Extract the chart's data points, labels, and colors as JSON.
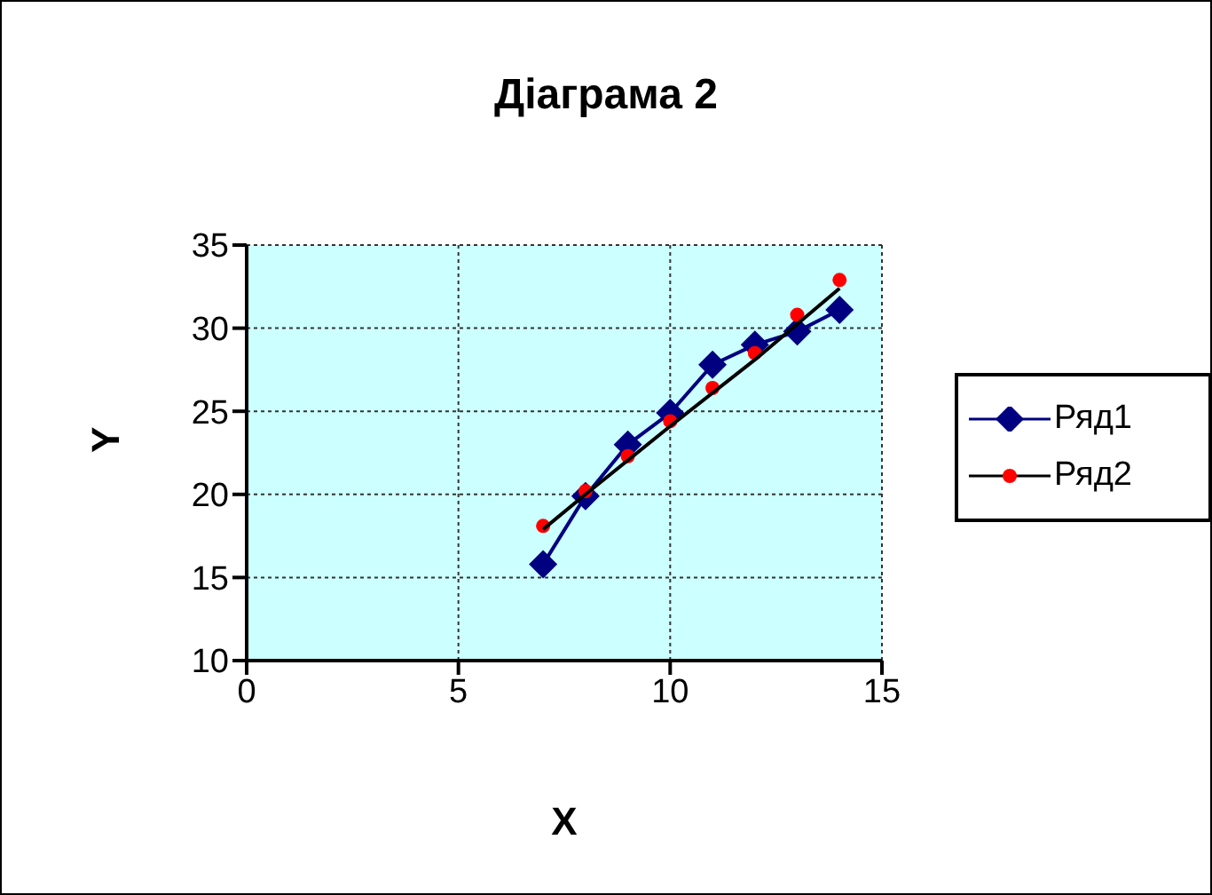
{
  "chart_data": {
    "type": "line",
    "title": "Діаграма 2",
    "xlabel": "X",
    "ylabel": "Y",
    "xlim": [
      0,
      15
    ],
    "xticks": [
      0,
      5,
      10,
      15
    ],
    "ylim": [
      10,
      35
    ],
    "yticks": [
      10,
      15,
      20,
      25,
      30,
      35
    ],
    "grid": true,
    "legend": "right",
    "series": [
      {
        "name": "Ряд1",
        "color": "#000080",
        "marker": "diamond",
        "x": [
          7,
          8,
          9,
          10,
          11,
          12,
          13,
          14
        ],
        "values": [
          15.8,
          19.9,
          23.0,
          24.9,
          27.8,
          29.0,
          29.8,
          31.1
        ]
      },
      {
        "name": "Ряд2",
        "type": "scatter",
        "color": "#ff0000",
        "marker": "circle",
        "x": [
          7,
          8,
          9,
          10,
          11,
          12,
          13,
          14
        ],
        "values": [
          18.1,
          20.2,
          22.3,
          24.4,
          26.4,
          28.5,
          30.8,
          32.9
        ]
      },
      {
        "color": "#000000",
        "marker": "none",
        "x": [
          7,
          8,
          10,
          12,
          14
        ],
        "values": [
          17.9,
          20.0,
          24.1,
          28.1,
          32.4
        ]
      }
    ]
  }
}
